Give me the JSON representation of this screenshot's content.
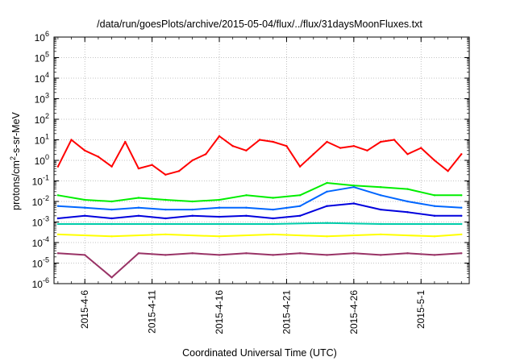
{
  "chart_data": {
    "type": "line",
    "title": "/data/run/goesPlots/archive/2015-05-04/flux/../flux/31daysMoonFluxes.txt",
    "xlabel": "Coordinated Universal Time (UTC)",
    "ylabel": "protons/cm²-s-sr-MeV",
    "ylabel_parts": {
      "base": "protons/cm",
      "sup": "2",
      "rest": "-s-sr-MeV"
    },
    "yscale": "log",
    "ylim": [
      1e-06,
      1000000.0
    ],
    "xlim": [
      "2015-04-03T17:00",
      "2015-05-04T14:00"
    ],
    "grid": true,
    "xticks": [
      "2015-04-06",
      "2015-04-11",
      "2015-04-16",
      "2015-04-21",
      "2015-04-26",
      "2015-05-01"
    ],
    "xtick_labels": [
      "2015-4-6",
      "2015-4-11",
      "2015-4-16",
      "2015-4-21",
      "2015-4-26",
      "2015-5-1"
    ],
    "yticks": [
      {
        "base": "10",
        "exp": "-6"
      },
      {
        "base": "10",
        "exp": "-5"
      },
      {
        "base": "10",
        "exp": "-4"
      },
      {
        "base": "10",
        "exp": "-3"
      },
      {
        "base": "10",
        "exp": "-2"
      },
      {
        "base": "10",
        "exp": "-1"
      },
      {
        "base": "10",
        "exp": "0"
      },
      {
        "base": "10",
        "exp": "1"
      },
      {
        "base": "10",
        "exp": "2"
      },
      {
        "base": "10",
        "exp": "3"
      },
      {
        "base": "10",
        "exp": "4"
      },
      {
        "base": "10",
        "exp": "5"
      },
      {
        "base": "10",
        "exp": "6"
      }
    ],
    "series": [
      {
        "color": "#ff0000",
        "x": [
          "2015-04-04",
          "2015-04-05",
          "2015-04-06",
          "2015-04-07",
          "2015-04-08",
          "2015-04-09",
          "2015-04-10",
          "2015-04-11",
          "2015-04-12",
          "2015-04-13",
          "2015-04-14",
          "2015-04-15",
          "2015-04-16",
          "2015-04-17",
          "2015-04-18",
          "2015-04-19",
          "2015-04-20",
          "2015-04-21",
          "2015-04-22",
          "2015-04-23",
          "2015-04-24",
          "2015-04-25",
          "2015-04-26",
          "2015-04-27",
          "2015-04-28",
          "2015-04-29",
          "2015-04-30",
          "2015-05-01",
          "2015-05-02",
          "2015-05-03",
          "2015-05-04"
        ],
        "y": [
          0.5,
          10,
          3,
          1.5,
          0.5,
          8,
          0.4,
          0.6,
          0.2,
          0.3,
          1,
          2,
          15,
          5,
          3,
          10,
          8,
          5,
          0.5,
          2,
          8,
          4,
          5,
          3,
          8,
          10,
          2,
          4,
          1,
          0.3,
          2
        ]
      },
      {
        "color": "#00ee00",
        "x": [
          "2015-04-04",
          "2015-04-06",
          "2015-04-08",
          "2015-04-10",
          "2015-04-12",
          "2015-04-14",
          "2015-04-16",
          "2015-04-18",
          "2015-04-20",
          "2015-04-22",
          "2015-04-24",
          "2015-04-26",
          "2015-04-28",
          "2015-04-30",
          "2015-05-02",
          "2015-05-04"
        ],
        "y": [
          0.02,
          0.012,
          0.01,
          0.015,
          0.012,
          0.01,
          0.012,
          0.02,
          0.015,
          0.02,
          0.08,
          0.06,
          0.05,
          0.04,
          0.02,
          0.02
        ]
      },
      {
        "color": "#0066ff",
        "x": [
          "2015-04-04",
          "2015-04-06",
          "2015-04-08",
          "2015-04-10",
          "2015-04-12",
          "2015-04-14",
          "2015-04-16",
          "2015-04-18",
          "2015-04-20",
          "2015-04-22",
          "2015-04-24",
          "2015-04-26",
          "2015-04-28",
          "2015-04-30",
          "2015-05-02",
          "2015-05-04"
        ],
        "y": [
          0.006,
          0.005,
          0.004,
          0.005,
          0.004,
          0.004,
          0.005,
          0.005,
          0.004,
          0.006,
          0.03,
          0.05,
          0.02,
          0.01,
          0.006,
          0.005
        ]
      },
      {
        "color": "#0000dd",
        "x": [
          "2015-04-04",
          "2015-04-06",
          "2015-04-08",
          "2015-04-10",
          "2015-04-12",
          "2015-04-14",
          "2015-04-16",
          "2015-04-18",
          "2015-04-20",
          "2015-04-22",
          "2015-04-24",
          "2015-04-26",
          "2015-04-28",
          "2015-04-30",
          "2015-05-02",
          "2015-05-04"
        ],
        "y": [
          0.0015,
          0.002,
          0.0015,
          0.002,
          0.0015,
          0.002,
          0.0018,
          0.002,
          0.0015,
          0.002,
          0.006,
          0.008,
          0.004,
          0.003,
          0.002,
          0.002
        ]
      },
      {
        "color": "#00ccaa",
        "x": [
          "2015-04-04",
          "2015-04-08",
          "2015-04-12",
          "2015-04-16",
          "2015-04-20",
          "2015-04-24",
          "2015-04-28",
          "2015-05-02",
          "2015-05-04"
        ],
        "y": [
          0.0008,
          0.0008,
          0.0008,
          0.0008,
          0.0008,
          0.0009,
          0.0008,
          0.0008,
          0.0008
        ]
      },
      {
        "color": "#ffff00",
        "x": [
          "2015-04-04",
          "2015-04-08",
          "2015-04-12",
          "2015-04-16",
          "2015-04-20",
          "2015-04-24",
          "2015-04-28",
          "2015-05-02",
          "2015-05-04"
        ],
        "y": [
          0.00025,
          0.0002,
          0.00025,
          0.0002,
          0.00025,
          0.0002,
          0.00025,
          0.0002,
          0.00025
        ]
      },
      {
        "color": "#993366",
        "x": [
          "2015-04-04",
          "2015-04-06",
          "2015-04-08",
          "2015-04-10",
          "2015-04-12",
          "2015-04-14",
          "2015-04-16",
          "2015-04-18",
          "2015-04-20",
          "2015-04-22",
          "2015-04-24",
          "2015-04-26",
          "2015-04-28",
          "2015-04-30",
          "2015-05-02",
          "2015-05-04"
        ],
        "y": [
          3e-05,
          2.5e-05,
          2e-06,
          3e-05,
          2.5e-05,
          3e-05,
          2.5e-05,
          3e-05,
          2.5e-05,
          3e-05,
          2.5e-05,
          3e-05,
          2.5e-05,
          3e-05,
          2.5e-05,
          3e-05
        ]
      }
    ]
  }
}
